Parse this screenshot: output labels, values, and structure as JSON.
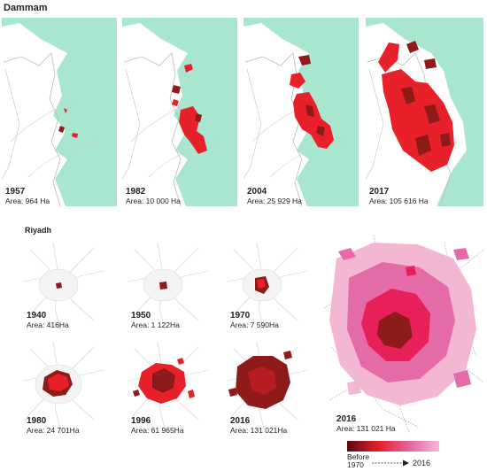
{
  "dammam": {
    "title": "Dammam",
    "panels": [
      {
        "year": "1957",
        "area": "Area: 964 Ha"
      },
      {
        "year": "1982",
        "area": "Area: 10 000 Ha"
      },
      {
        "year": "2004",
        "area": "Area: 25 929 Ha"
      },
      {
        "year": "2017",
        "area": "Area: 105 616 Ha"
      }
    ]
  },
  "riyadh": {
    "title": "Riyadh",
    "panels": [
      {
        "year": "1940",
        "area": "Area: 416Ha"
      },
      {
        "year": "1950",
        "area": "Area: 1 122Ha"
      },
      {
        "year": "1970",
        "area": "Area: 7 590Ha"
      },
      {
        "year": "1980",
        "area": "Area: 24 701Ha"
      },
      {
        "year": "1996",
        "area": "Area: 61 965Ha"
      },
      {
        "year": "2016",
        "area": "Area: 131 021Ha"
      }
    ],
    "large": {
      "year": "2016",
      "area": "Area: 131 021 Ha"
    }
  },
  "legend": {
    "start": "Before\n1970",
    "end": "2016"
  },
  "colors": {
    "sea": "#a8e6cf",
    "urban_dammam": "#e8202a",
    "urban_dark": "#8e1a1a",
    "urban_pink": "#e56aa8",
    "urban_lightpink": "#f3b7d3",
    "road": "#cfcfcf"
  }
}
